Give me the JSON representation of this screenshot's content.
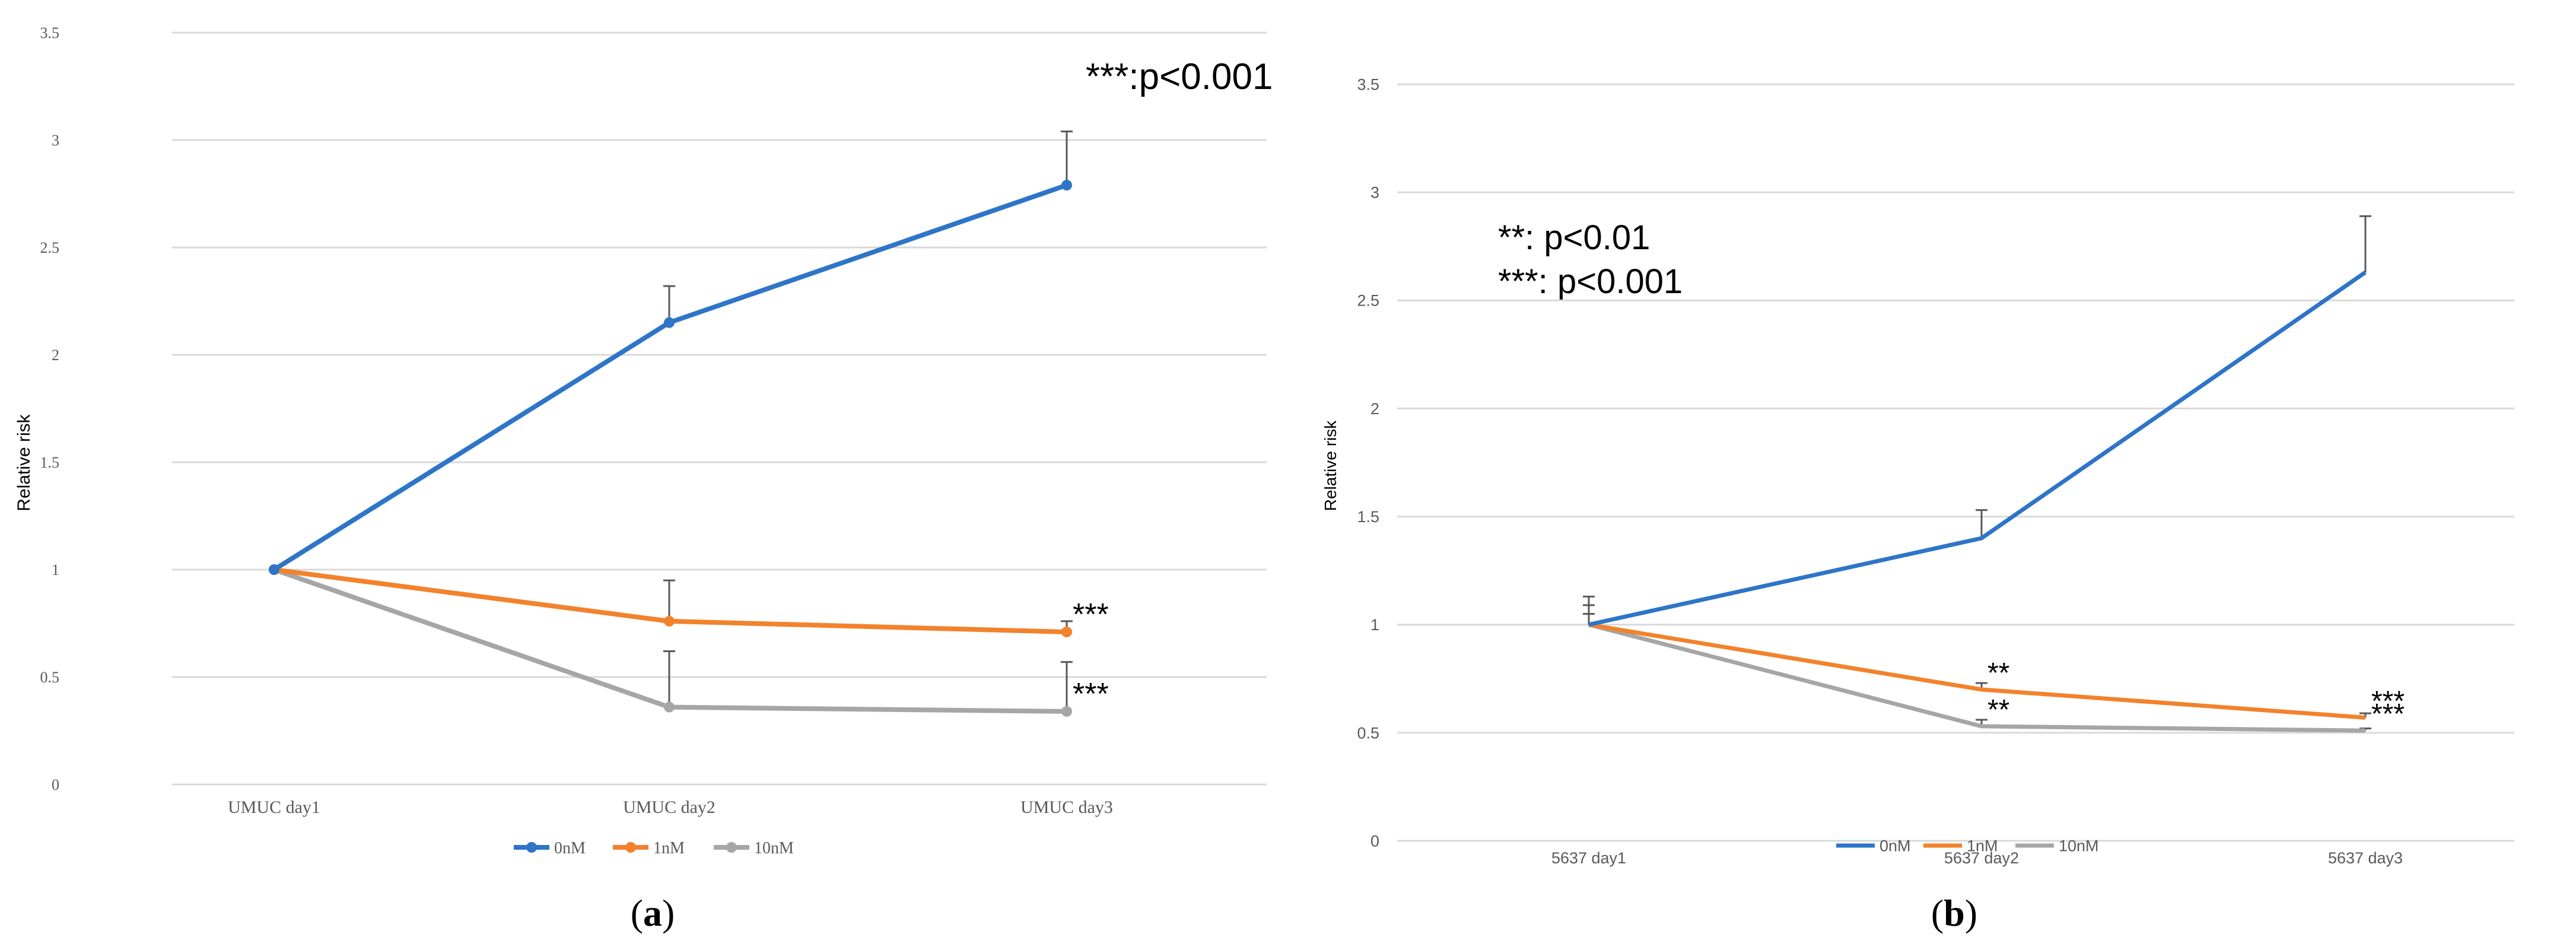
{
  "chart_data": [
    {
      "type": "line",
      "panel": "a",
      "caption_letter": "a",
      "categories": [
        "UMUC day1",
        "UMUC day2",
        "UMUC day3"
      ],
      "ylabel": "Relative risk",
      "ylim": [
        0,
        3.5
      ],
      "yticks": [
        0,
        0.5,
        1,
        1.5,
        2,
        2.5,
        3,
        3.5
      ],
      "ytick_labels": [
        "0",
        "0.5",
        "1",
        "1.5",
        "2",
        "2.5",
        "3",
        "3.5"
      ],
      "annotation_lines": [
        "***:p<0.001"
      ],
      "markers": true,
      "series": [
        {
          "name": "0nM",
          "color": "#2e75c8",
          "values": [
            1,
            2.15,
            2.79
          ],
          "errors": [
            0,
            0.17,
            0.25
          ],
          "sig": [
            "",
            "",
            ""
          ]
        },
        {
          "name": "1nM",
          "color": "#f2822c",
          "values": [
            1,
            0.76,
            0.71
          ],
          "errors": [
            0,
            0.19,
            0.05
          ],
          "sig": [
            "",
            "",
            "***"
          ]
        },
        {
          "name": "10nM",
          "color": "#a6a6a6",
          "values": [
            1,
            0.36,
            0.34
          ],
          "errors": [
            0,
            0.26,
            0.23
          ],
          "sig": [
            "",
            "",
            "***"
          ]
        }
      ]
    },
    {
      "type": "line",
      "panel": "b",
      "caption_letter": "b",
      "categories": [
        "5637 day1",
        "5637 day2",
        "5637 day3"
      ],
      "ylabel": "Relative risk",
      "ylim": [
        0,
        3.5
      ],
      "yticks": [
        0,
        0.5,
        1,
        1.5,
        2,
        2.5,
        3,
        3.5
      ],
      "ytick_labels": [
        "0",
        "0.5",
        "1",
        "1.5",
        "2",
        "2.5",
        "3",
        "3.5"
      ],
      "annotation_lines": [
        "**: p<0.01",
        "***: p<0.001"
      ],
      "markers": false,
      "series": [
        {
          "name": "0nM",
          "color": "#2e75c8",
          "values": [
            1,
            1.4,
            2.63
          ],
          "errors": [
            0.13,
            0.13,
            0.26
          ],
          "sig": [
            "",
            "",
            ""
          ]
        },
        {
          "name": "1nM",
          "color": "#f2822c",
          "values": [
            1,
            0.7,
            0.57
          ],
          "errors": [
            0.09,
            0.03,
            0.02
          ],
          "sig": [
            "",
            "**",
            "***"
          ]
        },
        {
          "name": "10nM",
          "color": "#a6a6a6",
          "values": [
            1,
            0.53,
            0.51
          ],
          "errors": [
            0.05,
            0.03,
            0.01
          ],
          "sig": [
            "",
            "**",
            "***"
          ]
        }
      ]
    }
  ]
}
